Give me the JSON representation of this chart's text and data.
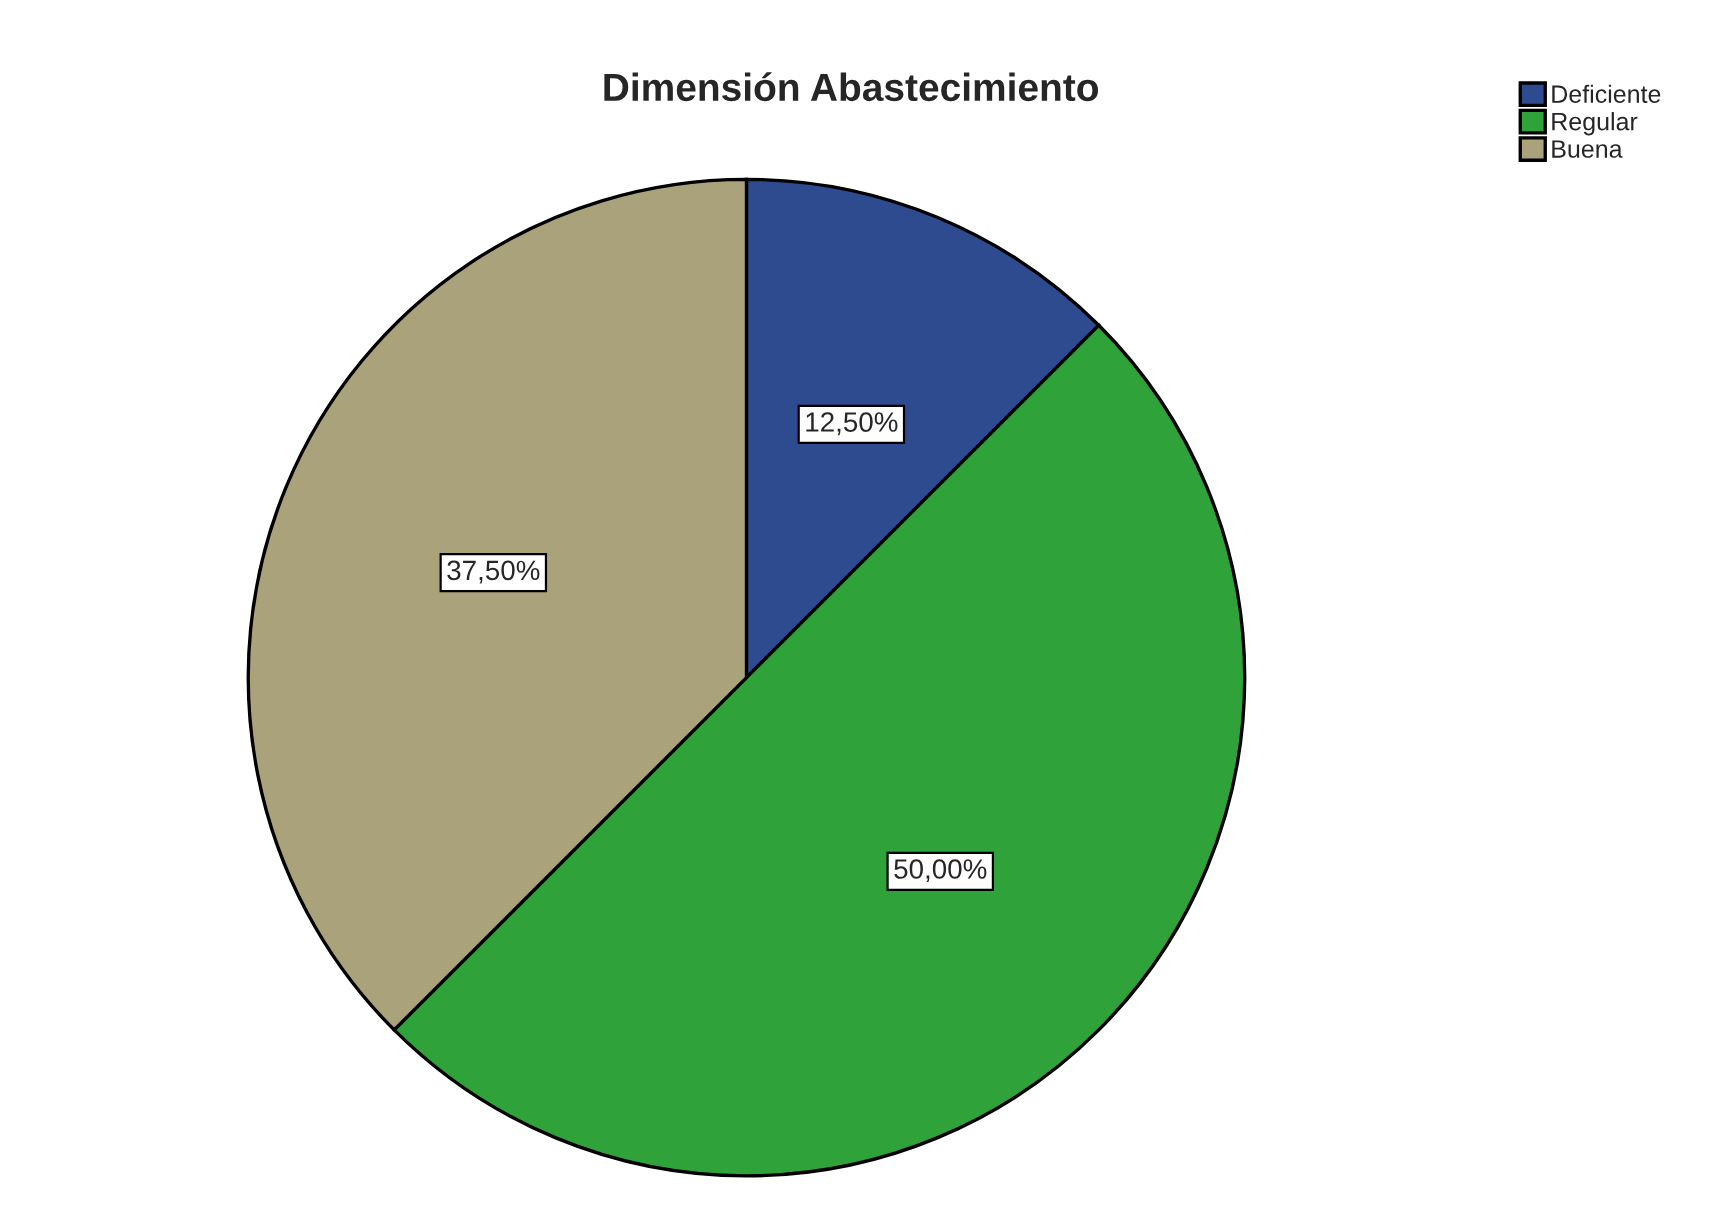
{
  "chart_data": {
    "type": "pie",
    "title": "Dimensión Abastecimiento",
    "categories": [
      "Deficiente",
      "Regular",
      "Buena"
    ],
    "values": [
      12.5,
      50,
      37.5
    ],
    "value_labels": [
      "12,50%",
      "50,00%",
      "37,50%"
    ],
    "colors": [
      "#2f4b8f",
      "#2fa33a",
      "#a9a27a"
    ],
    "legend": "top right"
  }
}
